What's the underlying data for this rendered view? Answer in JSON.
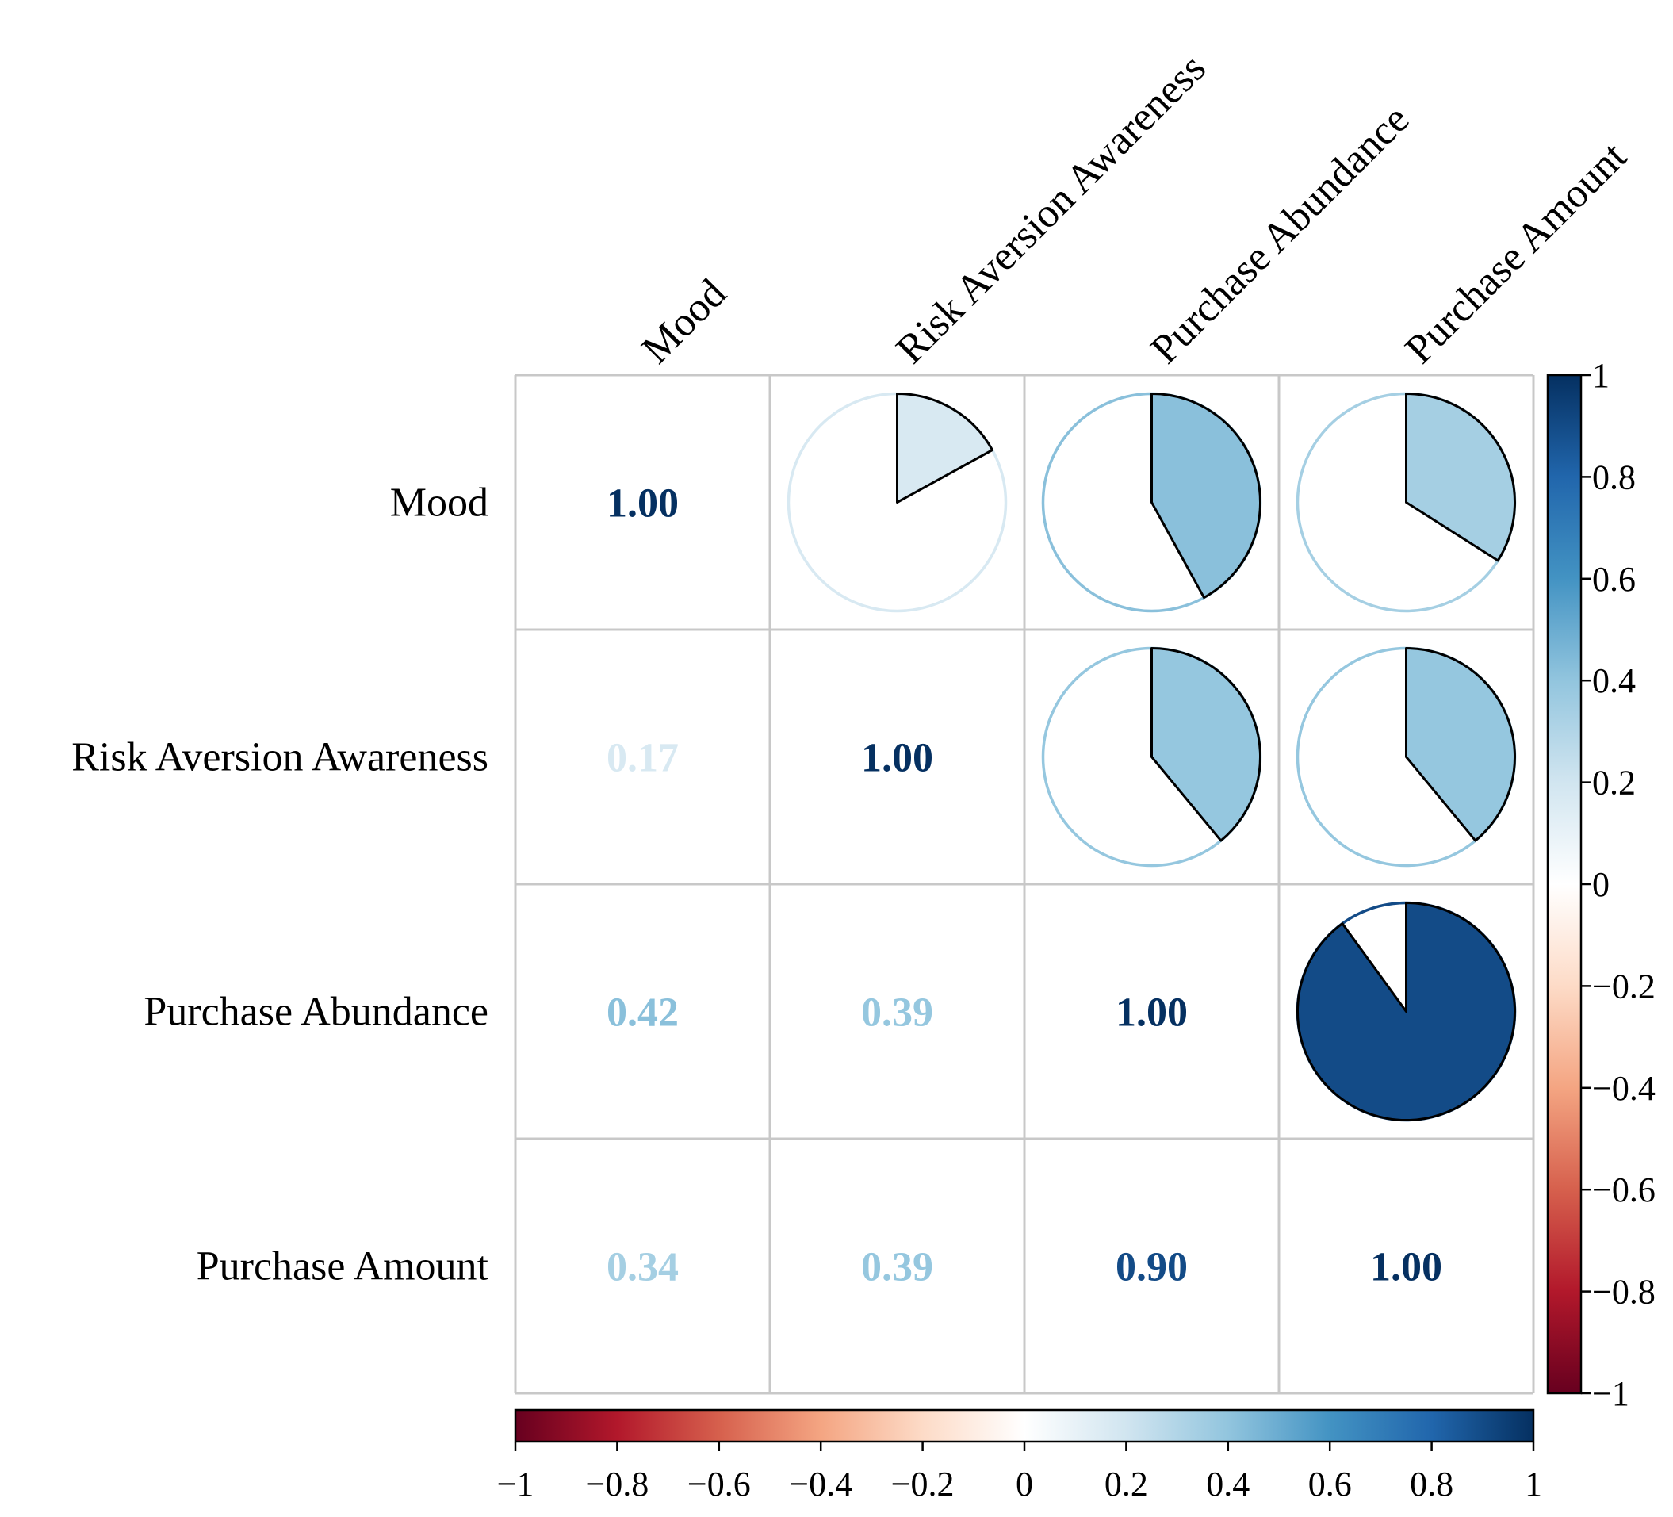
{
  "chart_data": {
    "type": "heatmap",
    "subtype": "correlation-matrix",
    "variables": [
      "Mood",
      "Risk Aversion Awareness",
      "Purchase Abundance",
      "Purchase Amount"
    ],
    "matrix": [
      [
        1.0,
        0.17,
        0.42,
        0.34
      ],
      [
        0.17,
        1.0,
        0.39,
        0.39
      ],
      [
        0.42,
        0.39,
        1.0,
        0.9
      ],
      [
        0.34,
        0.39,
        0.9,
        1.0
      ]
    ],
    "lower_labels": {
      "r0c0": "1.00",
      "r1c0": "0.17",
      "r1c1": "1.00",
      "r2c0": "0.42",
      "r2c1": "0.39",
      "r2c2": "1.00",
      "r3c0": "0.34",
      "r3c1": "0.39",
      "r3c2": "0.90",
      "r3c3": "1.00"
    },
    "upper_display": "pie",
    "lower_display": "number",
    "colorbar": {
      "range": [
        -1,
        1
      ],
      "ticks": [
        -1,
        -0.8,
        -0.6,
        -0.4,
        -0.2,
        0,
        0.2,
        0.4,
        0.6,
        0.8,
        1
      ],
      "tick_labels": [
        "−1",
        "−0.8",
        "−0.6",
        "−0.4",
        "−0.2",
        "0",
        "0.2",
        "0.4",
        "0.6",
        "0.8",
        "1"
      ],
      "colors": [
        "#67001F",
        "#B2182B",
        "#D6604D",
        "#F4A582",
        "#FDDBC7",
        "#FFFFFF",
        "#D1E5F0",
        "#92C5DE",
        "#4393C3",
        "#2166AC",
        "#053061"
      ]
    },
    "colors": {
      "grid": "#c8c8c8",
      "pie_outline": "#000000"
    }
  }
}
